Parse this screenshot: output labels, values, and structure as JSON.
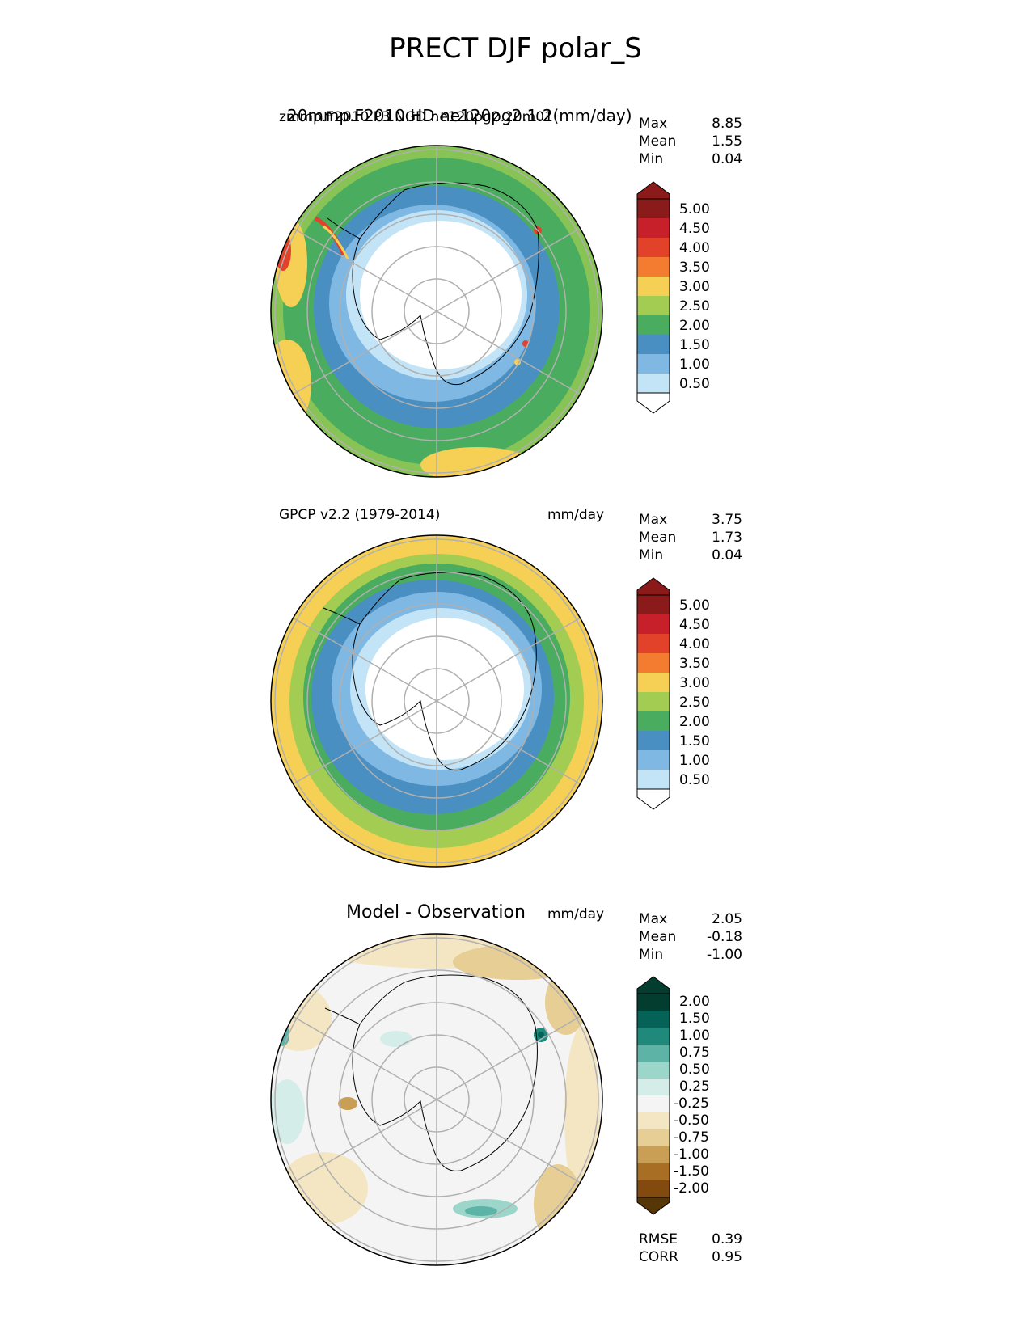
{
  "title": "PRECT DJF polar_S",
  "panels": [
    {
      "name": "test",
      "left_title": "zmmp.F2010.P3.NGD.ne120pg2.20m01",
      "left_title_overlay": "20mmp.F2010.HD.ne120pg2.1.2(mm/day)",
      "center_title": "",
      "units": "",
      "stats": [
        {
          "label": "Max",
          "value": "8.85"
        },
        {
          "label": "Mean",
          "value": "1.55"
        },
        {
          "label": "Min",
          "value": "0.04"
        }
      ],
      "levels": [
        "5.00",
        "4.50",
        "4.00",
        "3.50",
        "3.00",
        "2.50",
        "2.00",
        "1.50",
        "1.00",
        "0.50"
      ]
    },
    {
      "name": "reference",
      "left_title": "GPCP v2.2 (1979-2014)",
      "center_title": "",
      "units": "mm/day",
      "stats": [
        {
          "label": "Max",
          "value": "3.75"
        },
        {
          "label": "Mean",
          "value": "1.73"
        },
        {
          "label": "Min",
          "value": "0.04"
        }
      ],
      "levels": [
        "5.00",
        "4.50",
        "4.00",
        "3.50",
        "3.00",
        "2.50",
        "2.00",
        "1.50",
        "1.00",
        "0.50"
      ]
    },
    {
      "name": "diff",
      "left_title": "",
      "center_title": "Model - Observation",
      "units": "mm/day",
      "stats": [
        {
          "label": "Max",
          "value": "2.05"
        },
        {
          "label": "Mean",
          "value": "-0.18"
        },
        {
          "label": "Min",
          "value": "-1.00"
        }
      ],
      "levels": [
        "2.00",
        "1.50",
        "1.00",
        "0.75",
        "0.50",
        "0.25",
        "-0.25",
        "-0.50",
        "-0.75",
        "-1.00",
        "-1.50",
        "-2.00"
      ],
      "metrics": [
        {
          "label": "RMSE",
          "value": "0.39"
        },
        {
          "label": "CORR",
          "value": "0.95"
        }
      ]
    }
  ],
  "colors": {
    "seq": [
      "#8b1a1a",
      "#c8202a",
      "#e2412a",
      "#f47c30",
      "#f6cf55",
      "#a3cd52",
      "#4aac5e",
      "#4a8fc2",
      "#7fb8e2",
      "#c2e4f6",
      "#ffffff"
    ],
    "div": [
      "#033d30",
      "#046356",
      "#1f8a7c",
      "#5cb3a6",
      "#9cd6ca",
      "#d4ede8",
      "#f4f4f4",
      "#f5e6c3",
      "#e6ce95",
      "#c99e55",
      "#a86f24",
      "#824a0f",
      "#563507"
    ]
  }
}
